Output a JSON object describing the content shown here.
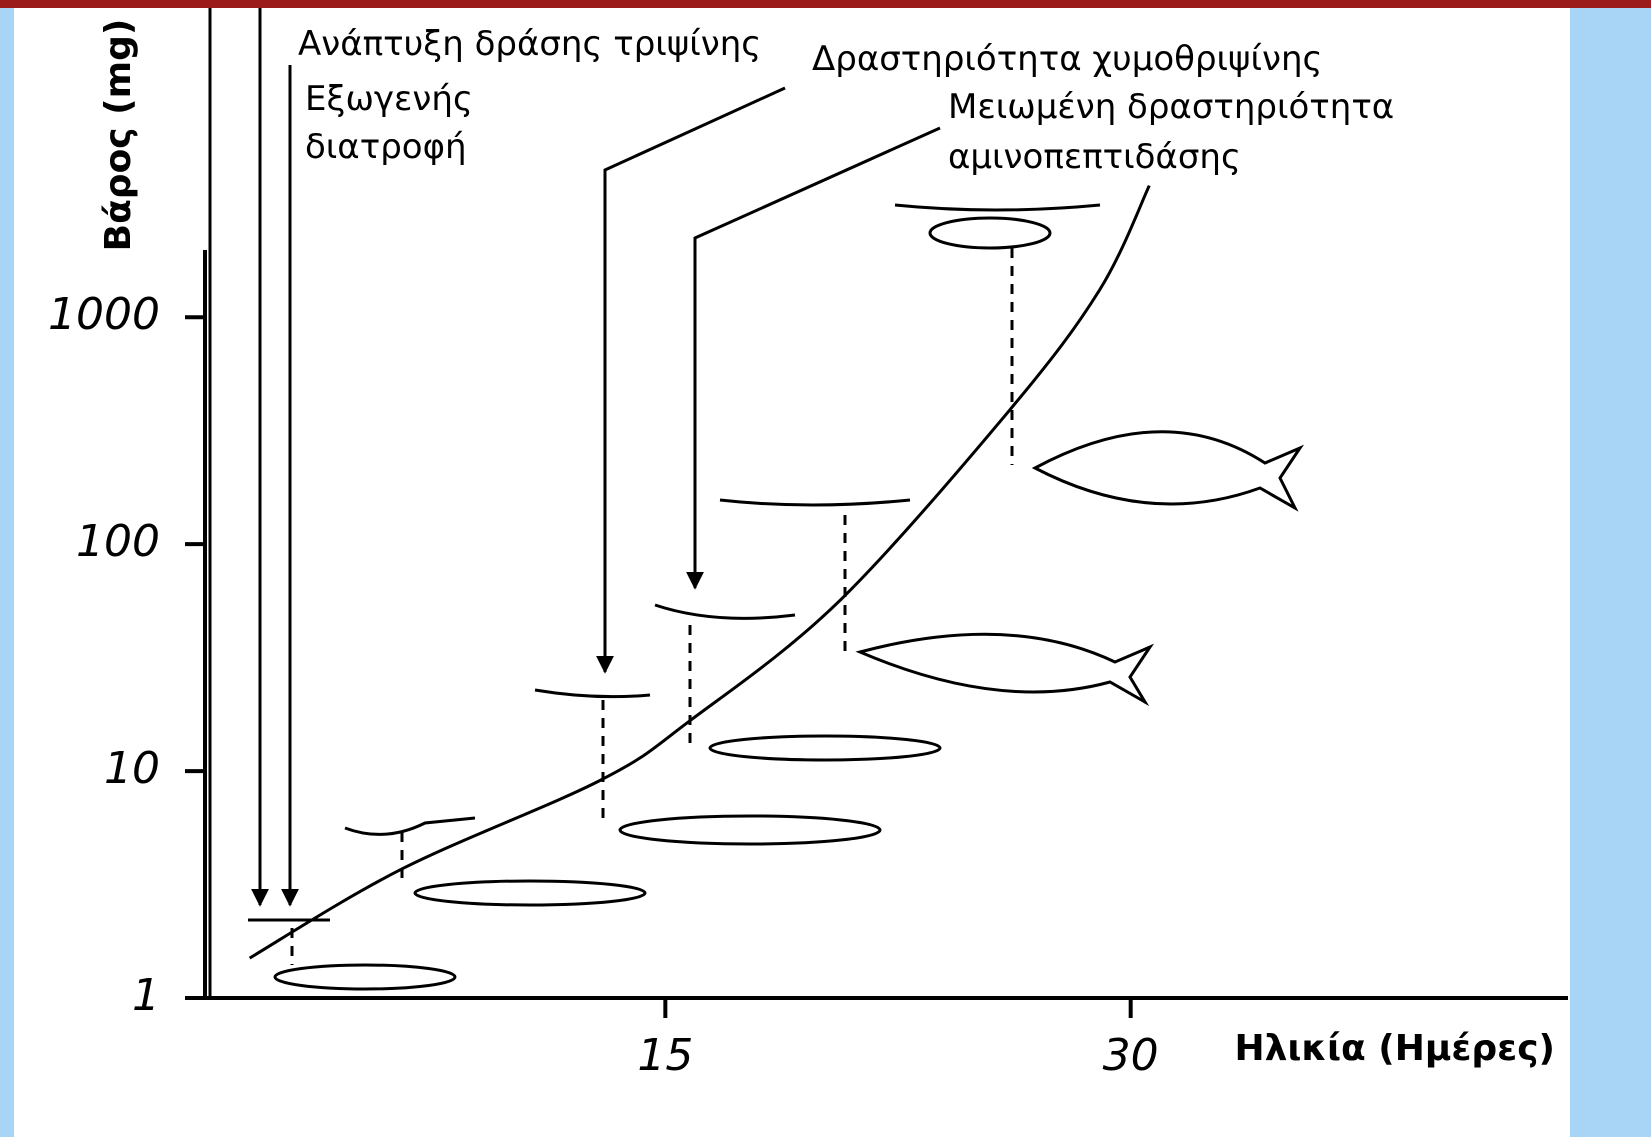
{
  "chart_data": {
    "type": "line",
    "y_label": "Βάρος (mg)",
    "x_label": "Ηλικία (Ημέρες)",
    "x": [
      1.6,
      6.5,
      12.9,
      15.8,
      20.6,
      26.1,
      29,
      30.6
    ],
    "values": [
      1.5,
      3.7,
      9.1,
      16.7,
      56,
      390,
      1320,
      3800
    ],
    "color": "#000000",
    "xlim": [
      0,
      44
    ],
    "xticks": [
      15,
      30
    ],
    "ylim": [
      1,
      20000
    ],
    "yticks": [
      1,
      10,
      100,
      1000
    ],
    "log_y": true,
    "annotations": [
      {
        "lines": [
          "Ανάπτυξη δράσης τριψίνης"
        ]
      },
      {
        "lines": [
          "Εξωγενής",
          "διατροφή"
        ]
      },
      {
        "lines": [
          "Δραστηριότητα χυμοθριψίνης"
        ]
      },
      {
        "lines": [
          "Μειωμένη δραστηριότητα",
          "αμινοπεπτιδάσης"
        ]
      }
    ]
  }
}
